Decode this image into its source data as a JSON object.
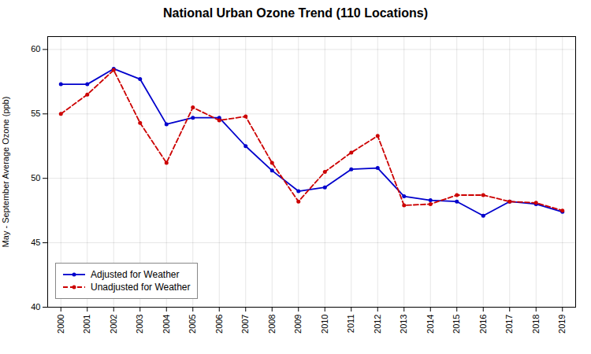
{
  "chart_data": {
    "type": "line",
    "title": "National Urban Ozone Trend (110 Locations)",
    "y_label": "May - September Average Ozone (ppb)",
    "x": [
      2000,
      2001,
      2002,
      2003,
      2004,
      2005,
      2006,
      2007,
      2008,
      2009,
      2010,
      2011,
      2012,
      2013,
      2014,
      2015,
      2016,
      2017,
      2018,
      2019
    ],
    "series": [
      {
        "name": "Adjusted for Weather",
        "color": "#0000CC",
        "line_style": "solid",
        "marker": "circle",
        "values": [
          57.3,
          57.3,
          58.5,
          57.7,
          54.2,
          54.7,
          54.7,
          52.5,
          50.6,
          49.0,
          49.3,
          50.7,
          50.8,
          48.6,
          48.3,
          48.2,
          47.1,
          48.2,
          48.0,
          47.4
        ]
      },
      {
        "name": "Unadjusted for Weather",
        "color": "#CC0000",
        "line_style": "dashed",
        "marker": "circle",
        "values": [
          55.0,
          56.5,
          58.4,
          54.3,
          51.2,
          55.5,
          54.5,
          54.8,
          51.2,
          48.2,
          50.5,
          52.0,
          53.3,
          47.9,
          48.0,
          48.7,
          48.7,
          48.2,
          48.1,
          47.5
        ]
      }
    ],
    "xlim": [
      1999.5,
      2019.5
    ],
    "xticks": [
      2000,
      2001,
      2002,
      2003,
      2004,
      2005,
      2006,
      2007,
      2008,
      2009,
      2010,
      2011,
      2012,
      2013,
      2014,
      2015,
      2016,
      2017,
      2018,
      2019
    ],
    "ylim": [
      40,
      61
    ],
    "yticks": [
      40,
      45,
      50,
      55,
      60
    ],
    "grid": true,
    "legend": "lower left"
  }
}
